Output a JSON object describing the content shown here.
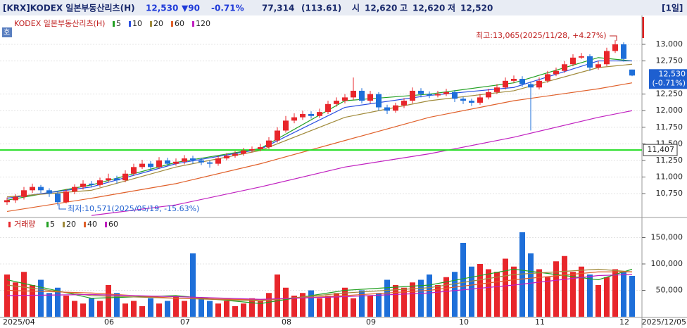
{
  "header": {
    "name": "[KRX]KODEX 일본부동산리츠(H)",
    "price": "12,530",
    "change": "▼90",
    "change_pct": "-0.71%",
    "volume": "77,314",
    "volume_ratio": "(113.61)",
    "open_label": "시",
    "open": "12,620",
    "high_label": "고",
    "high": "12,620",
    "low_label": "저",
    "low": "12,520",
    "period": "[1일]",
    "button": "호"
  },
  "chart_data": {
    "type": "candlestick",
    "up_color": "#e8262b",
    "down_color": "#1e6fd9",
    "categories": [
      "2025/04",
      null,
      null,
      null,
      null,
      null,
      null,
      null,
      null,
      null,
      null,
      null,
      "06",
      null,
      null,
      null,
      null,
      null,
      null,
      null,
      null,
      "07",
      null,
      null,
      null,
      null,
      null,
      null,
      null,
      null,
      null,
      null,
      null,
      "08",
      null,
      null,
      null,
      null,
      null,
      null,
      null,
      null,
      null,
      "09",
      null,
      null,
      null,
      null,
      null,
      null,
      null,
      null,
      null,
      null,
      "10",
      null,
      null,
      null,
      null,
      null,
      null,
      null,
      null,
      "11",
      null,
      null,
      null,
      null,
      null,
      null,
      null,
      null,
      null,
      "12",
      "2025/12/05"
    ],
    "candles": [
      [
        10620,
        10690,
        10580,
        10650
      ],
      [
        10650,
        10740,
        10610,
        10700
      ],
      [
        10700,
        10850,
        10660,
        10800
      ],
      [
        10800,
        10900,
        10760,
        10850
      ],
      [
        10850,
        10880,
        10760,
        10800
      ],
      [
        10800,
        10830,
        10700,
        10750
      ],
      [
        10750,
        10780,
        10571,
        10620
      ],
      [
        10620,
        10820,
        10600,
        10780
      ],
      [
        10780,
        10890,
        10740,
        10850
      ],
      [
        10850,
        10950,
        10810,
        10900
      ],
      [
        10900,
        10940,
        10840,
        10880
      ],
      [
        10880,
        10990,
        10850,
        10950
      ],
      [
        10950,
        11050,
        10920,
        10980
      ],
      [
        10980,
        11020,
        10900,
        10950
      ],
      [
        10950,
        11100,
        10920,
        11050
      ],
      [
        11050,
        11200,
        11020,
        11150
      ],
      [
        11150,
        11260,
        11120,
        11200
      ],
      [
        11200,
        11240,
        11100,
        11150
      ],
      [
        11150,
        11300,
        11120,
        11250
      ],
      [
        11250,
        11290,
        11160,
        11200
      ],
      [
        11200,
        11280,
        11170,
        11230
      ],
      [
        11230,
        11330,
        11190,
        11280
      ],
      [
        11280,
        11320,
        11200,
        11250
      ],
      [
        11250,
        11290,
        11180,
        11220
      ],
      [
        11220,
        11250,
        11140,
        11200
      ],
      [
        11200,
        11320,
        11170,
        11280
      ],
      [
        11280,
        11360,
        11250,
        11320
      ],
      [
        11320,
        11390,
        11290,
        11350
      ],
      [
        11350,
        11440,
        11320,
        11400
      ],
      [
        11400,
        11460,
        11370,
        11420
      ],
      [
        11420,
        11500,
        11390,
        11450
      ],
      [
        11450,
        11600,
        11420,
        11550
      ],
      [
        11550,
        11750,
        11520,
        11700
      ],
      [
        11700,
        11920,
        11670,
        11850
      ],
      [
        11850,
        11960,
        11810,
        11900
      ],
      [
        11900,
        12000,
        11860,
        11950
      ],
      [
        11950,
        11990,
        11880,
        11920
      ],
      [
        11920,
        12030,
        11890,
        11980
      ],
      [
        11980,
        12150,
        11950,
        12100
      ],
      [
        12100,
        12200,
        12060,
        12150
      ],
      [
        12150,
        12250,
        12110,
        12200
      ],
      [
        12200,
        12500,
        12160,
        12300
      ],
      [
        12300,
        12340,
        12110,
        12150
      ],
      [
        12150,
        12300,
        12110,
        12250
      ],
      [
        12250,
        12280,
        12000,
        12050
      ],
      [
        12050,
        12090,
        11950,
        12000
      ],
      [
        12000,
        12120,
        11970,
        12080
      ],
      [
        12080,
        12190,
        12040,
        12150
      ],
      [
        12150,
        12350,
        12110,
        12300
      ],
      [
        12300,
        12340,
        12200,
        12250
      ],
      [
        12250,
        12290,
        12190,
        12230
      ],
      [
        12230,
        12300,
        12200,
        12250
      ],
      [
        12250,
        12330,
        12220,
        12280
      ],
      [
        12280,
        12310,
        12130,
        12180
      ],
      [
        12180,
        12210,
        12100,
        12150
      ],
      [
        12150,
        12180,
        12070,
        12120
      ],
      [
        12120,
        12250,
        12090,
        12200
      ],
      [
        12200,
        12330,
        12170,
        12280
      ],
      [
        12280,
        12400,
        12250,
        12350
      ],
      [
        12350,
        12500,
        12320,
        12450
      ],
      [
        12450,
        12530,
        12420,
        12480
      ],
      [
        12480,
        12520,
        12360,
        12400
      ],
      [
        12400,
        12440,
        11700,
        12350
      ],
      [
        12350,
        12500,
        12320,
        12450
      ],
      [
        12450,
        12600,
        12420,
        12550
      ],
      [
        12550,
        12650,
        12520,
        12600
      ],
      [
        12600,
        12750,
        12570,
        12700
      ],
      [
        12700,
        12850,
        12670,
        12800
      ],
      [
        12800,
        12870,
        12780,
        12820
      ],
      [
        12820,
        12850,
        12600,
        12650
      ],
      [
        12650,
        12750,
        12620,
        12700
      ],
      [
        12700,
        12950,
        12670,
        12900
      ],
      [
        12900,
        13065,
        12870,
        13000
      ],
      [
        13000,
        13030,
        12740,
        12780
      ],
      [
        12620,
        12620,
        12520,
        12530
      ]
    ],
    "volumes": [
      80000,
      65000,
      85000,
      60000,
      70000,
      45000,
      55000,
      40000,
      30000,
      25000,
      35000,
      30000,
      60000,
      45000,
      25000,
      30000,
      20000,
      35000,
      25000,
      30000,
      40000,
      30000,
      120000,
      35000,
      30000,
      25000,
      30000,
      20000,
      25000,
      35000,
      30000,
      45000,
      80000,
      55000,
      40000,
      45000,
      50000,
      35000,
      40000,
      45000,
      55000,
      35000,
      50000,
      40000,
      45000,
      70000,
      60000,
      55000,
      65000,
      70000,
      80000,
      60000,
      75000,
      85000,
      140000,
      95000,
      100000,
      90000,
      85000,
      110000,
      95000,
      160000,
      120000,
      90000,
      75000,
      105000,
      115000,
      85000,
      95000,
      80000,
      60000,
      75000,
      90000,
      85000,
      77314
    ],
    "ylim": [
      10400,
      13414
    ],
    "yticks": [
      {
        "value": 10750,
        "label": "10,750"
      },
      {
        "value": 11000,
        "label": "11,000"
      },
      {
        "value": 11250,
        "label": "11,250"
      },
      {
        "value": 11500,
        "label": "11,500"
      },
      {
        "value": 11750,
        "label": "11,750"
      },
      {
        "value": 12000,
        "label": "12,000"
      },
      {
        "value": 12250,
        "label": "12,250"
      },
      {
        "value": 12750,
        "label": "12,750"
      },
      {
        "value": 13000,
        "label": "13,000"
      }
    ],
    "vol_ylim": [
      0,
      184000
    ],
    "vol_yticks": [
      {
        "value": 50000,
        "label": "50,000"
      },
      {
        "value": 100000,
        "label": "100,000"
      },
      {
        "value": 150000,
        "label": "150,000"
      }
    ],
    "legend_name": "KODEX 일본부동산리츠(H)",
    "ma_index": [
      0,
      10,
      20,
      30,
      40,
      50,
      60,
      70,
      74
    ],
    "ma_series": [
      {
        "name": "5",
        "color": "#22a022",
        "values": [
          10650,
          10880,
          11220,
          11430,
          12150,
          12250,
          12420,
          12800,
          12750
        ]
      },
      {
        "name": "10",
        "color": "#2a4fe0",
        "values": [
          10680,
          10850,
          11200,
          11420,
          12050,
          12230,
          12350,
          12750,
          12750
        ]
      },
      {
        "name": "20",
        "color": "#a08a3a",
        "values": [
          10700,
          10800,
          11150,
          11400,
          11900,
          12150,
          12300,
          12650,
          12700
        ]
      },
      {
        "name": "60",
        "color": "#e0602a",
        "values": [
          10480,
          10680,
          10900,
          11200,
          11550,
          11900,
          12150,
          12330,
          12420
        ]
      },
      {
        "name": "120",
        "color": "#c020c0",
        "values": [
          null,
          10420,
          10580,
          10850,
          11150,
          11350,
          11600,
          11900,
          12000
        ]
      }
    ],
    "vol_legend_name": "거래량",
    "vol_ma_series": [
      {
        "name": "5",
        "color": "#22a022",
        "values": [
          70000,
          35000,
          40000,
          25000,
          50000,
          60000,
          90000,
          70000,
          90000
        ]
      },
      {
        "name": "20",
        "color": "#a08a3a",
        "values": [
          60000,
          40000,
          35000,
          30000,
          45000,
          55000,
          80000,
          90000,
          85000
        ]
      },
      {
        "name": "40",
        "color": "#e0602a",
        "values": [
          50000,
          45000,
          35000,
          32000,
          40000,
          50000,
          70000,
          85000,
          85000
        ]
      },
      {
        "name": "60",
        "color": "#c020c0",
        "values": [
          40000,
          42000,
          38000,
          33000,
          38000,
          45000,
          60000,
          78000,
          80000
        ]
      }
    ],
    "hline": {
      "value": 11407,
      "label": "11,407",
      "color": "#22dd22"
    },
    "last_price": {
      "value": 12530,
      "label": "12,530",
      "pct": "(-0.71%)"
    },
    "annotations": {
      "high": "최고:13,065(2025/11/28, +4.27%)",
      "low": "최저:10,571(2025/05/19, -15.63%)"
    }
  }
}
